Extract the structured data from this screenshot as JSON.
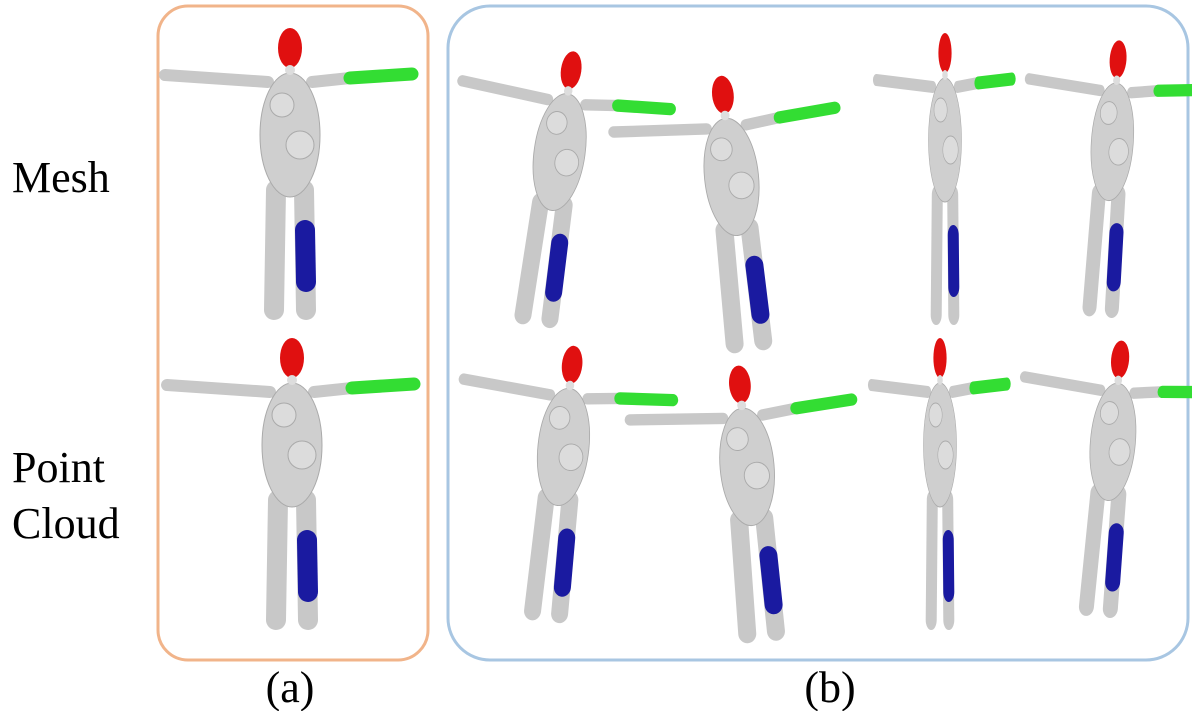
{
  "rows": [
    {
      "label": "Mesh"
    },
    {
      "label_lines": [
        "Point",
        "Cloud"
      ]
    }
  ],
  "panels": [
    {
      "label": "(a)"
    },
    {
      "label": "(b)"
    }
  ]
}
